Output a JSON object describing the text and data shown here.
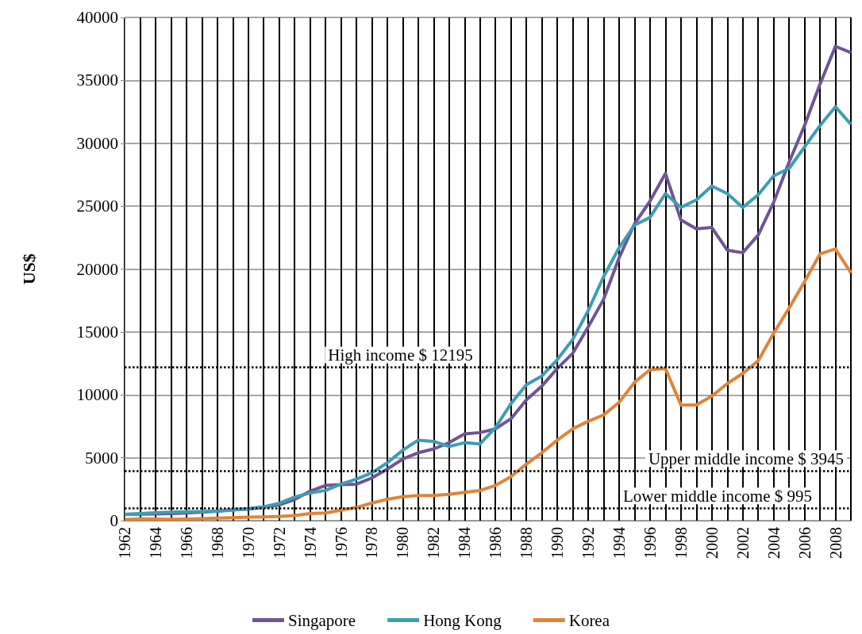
{
  "chart_data": {
    "type": "line",
    "ylabel": "US$",
    "categories": [
      "1962",
      null,
      "1964",
      null,
      "1966",
      null,
      "1968",
      null,
      "1970",
      null,
      "1972",
      null,
      "1974",
      null,
      "1976",
      null,
      "1978",
      null,
      "1980",
      null,
      "1982",
      null,
      "1984",
      null,
      "1986",
      null,
      "1988",
      null,
      "1990",
      null,
      "1992",
      null,
      "1994",
      null,
      "1996",
      null,
      "1998",
      null,
      "2000",
      null,
      "2002",
      null,
      "2004",
      null,
      "2006",
      null,
      "2008",
      null
    ],
    "series": [
      {
        "name": "Singapore",
        "color": "#6f5495",
        "values": [
          500,
          520,
          540,
          560,
          620,
          680,
          760,
          880,
          920,
          1070,
          1260,
          1680,
          2340,
          2800,
          2860,
          2900,
          3400,
          4100,
          4900,
          5400,
          5700,
          6200,
          6900,
          7000,
          7300,
          8100,
          9600,
          10700,
          12100,
          13300,
          15400,
          17600,
          20900,
          23600,
          25400,
          27600,
          23900,
          23200,
          23300,
          21500,
          21300,
          22700,
          25300,
          28500,
          31400,
          34700,
          37700,
          37200
        ]
      },
      {
        "name": "Hong Kong",
        "color": "#3d9db3",
        "values": [
          500,
          570,
          630,
          680,
          710,
          720,
          750,
          830,
          960,
          1100,
          1380,
          1880,
          2200,
          2400,
          2900,
          3300,
          3800,
          4600,
          5600,
          6400,
          6300,
          5900,
          6200,
          6100,
          7400,
          9300,
          10800,
          11500,
          12800,
          14400,
          16700,
          19400,
          21700,
          23500,
          24100,
          26000,
          24900,
          25500,
          26600,
          26000,
          24900,
          25900,
          27400,
          28000,
          29700,
          31400,
          32900,
          31500
        ]
      },
      {
        "name": "Korea",
        "color": "#e0843a",
        "values": [
          100,
          140,
          120,
          110,
          130,
          160,
          200,
          240,
          280,
          300,
          330,
          410,
          560,
          620,
          830,
          1050,
          1400,
          1700,
          1900,
          2000,
          2000,
          2100,
          2250,
          2400,
          2800,
          3500,
          4500,
          5400,
          6400,
          7300,
          7900,
          8400,
          9400,
          11000,
          12000,
          12100,
          9200,
          9200,
          9900,
          10900,
          11700,
          12700,
          14900,
          16900,
          19000,
          21200,
          21600,
          19700
        ]
      }
    ],
    "ylim": [
      0,
      40000
    ],
    "yticks": [
      0,
      5000,
      10000,
      15000,
      20000,
      25000,
      30000,
      35000,
      40000
    ],
    "grid": true,
    "legend": "bottom",
    "marker": "none",
    "line_style": "solid",
    "ref_lines": [
      {
        "axis": "y",
        "value": 12195,
        "label": "High income $ 12195",
        "color": "#000000",
        "line_style": "dotted"
      },
      {
        "axis": "y",
        "value": 3945,
        "label": "Upper middle income $ 3945",
        "color": "#000000",
        "line_style": "dotted"
      },
      {
        "axis": "y",
        "value": 995,
        "label": "Lower middle income $ 995",
        "color": "#000000",
        "line_style": "dotted"
      }
    ]
  }
}
